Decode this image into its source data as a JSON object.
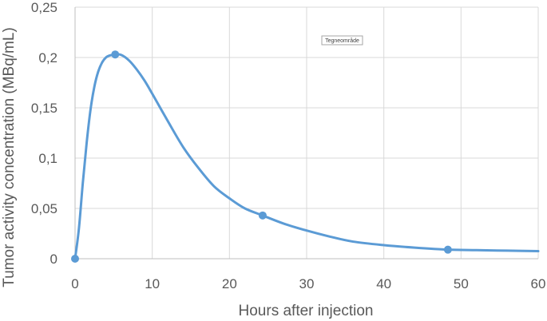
{
  "chart_data": {
    "type": "line",
    "xlabel": "Hours after injection",
    "ylabel": "Tumor activity concentration (MBq/mL)",
    "xlim": [
      0,
      60
    ],
    "ylim": [
      0,
      0.25
    ],
    "x_ticks": [
      0,
      10,
      20,
      30,
      40,
      50,
      60
    ],
    "x_tick_labels": [
      "0",
      "10",
      "20",
      "30",
      "40",
      "50",
      "60"
    ],
    "y_ticks": [
      0,
      0.05,
      0.1,
      0.15,
      0.2,
      0.25
    ],
    "y_tick_labels": [
      "0",
      "0,05",
      "0,1",
      "0,15",
      "0,2",
      "0,25"
    ],
    "grid": true,
    "annotation": "Tegneområde",
    "series": [
      {
        "color": "#5b9bd5",
        "points": [
          {
            "x": 0,
            "y": 0
          },
          {
            "x": 5.2,
            "y": 0.203
          },
          {
            "x": 24.3,
            "y": 0.043
          },
          {
            "x": 48.3,
            "y": 0.009
          }
        ],
        "curve": [
          [
            0,
            0
          ],
          [
            0.5,
            0.03
          ],
          [
            1,
            0.075
          ],
          [
            1.5,
            0.115
          ],
          [
            2,
            0.148
          ],
          [
            2.5,
            0.171
          ],
          [
            3,
            0.186
          ],
          [
            3.5,
            0.195
          ],
          [
            4,
            0.2
          ],
          [
            4.5,
            0.202
          ],
          [
            5.2,
            0.203
          ],
          [
            6,
            0.2025
          ],
          [
            7,
            0.197
          ],
          [
            8,
            0.188
          ],
          [
            9,
            0.177
          ],
          [
            10,
            0.164
          ],
          [
            12,
            0.137
          ],
          [
            14,
            0.111
          ],
          [
            16,
            0.09
          ],
          [
            18,
            0.072
          ],
          [
            20,
            0.06
          ],
          [
            22,
            0.05
          ],
          [
            24.3,
            0.043
          ],
          [
            27,
            0.035
          ],
          [
            30,
            0.028
          ],
          [
            33,
            0.022
          ],
          [
            36,
            0.017
          ],
          [
            40,
            0.0135
          ],
          [
            44,
            0.011
          ],
          [
            48.3,
            0.009
          ],
          [
            52,
            0.0085
          ],
          [
            56,
            0.008
          ],
          [
            60,
            0.0075
          ]
        ]
      }
    ]
  }
}
